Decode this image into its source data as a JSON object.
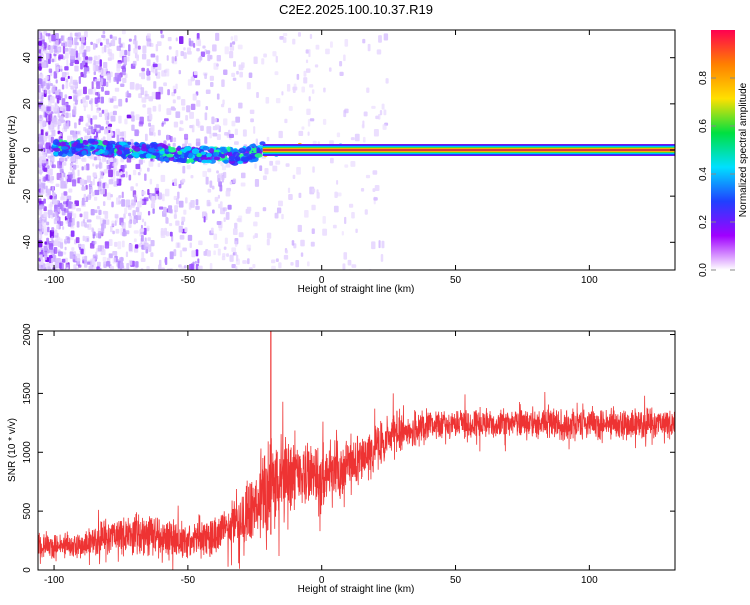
{
  "title": "C2E2.2025.100.10.37.R19",
  "colors": {
    "snr_line": "#ee3333",
    "signal_band": "#d83838",
    "background": "#ffffff",
    "colorbar_stops": [
      "#ffffff",
      "#a000ff",
      "#2040ff",
      "#00e0ff",
      "#00e040",
      "#ffe000",
      "#ff8000",
      "#ff0050"
    ]
  },
  "chart_data": [
    {
      "type": "heatmap",
      "title": "",
      "xlabel": "Height of straight line (km)",
      "ylabel": "Frequency (Hz)",
      "xlim": [
        -106,
        132
      ],
      "ylim": [
        -52,
        52
      ],
      "x_ticks": [
        -100,
        -50,
        0,
        50,
        100
      ],
      "x_tick_labels": [
        "-100",
        "-50",
        "0",
        "50",
        "100"
      ],
      "y_ticks": [
        40,
        20,
        0,
        -20,
        -40
      ],
      "y_tick_labels": [
        "40",
        "20",
        "0",
        "-20",
        "-40"
      ],
      "signal_trace": {
        "x": [
          -100,
          -85,
          -75,
          -65,
          -55,
          -45,
          -38,
          -32,
          -28,
          -25,
          -22,
          0,
          50,
          132
        ],
        "frequency": [
          1,
          1,
          0,
          0,
          -2,
          -2,
          -2,
          -3,
          -2,
          -1,
          0,
          0,
          0,
          0
        ]
      },
      "colorbar": {
        "label": "Normalized spectral amplitude",
        "range": [
          0,
          1
        ],
        "ticks": [
          0.0,
          0.2,
          0.4,
          0.6,
          0.8
        ],
        "tick_labels": [
          "0.0",
          "0.2",
          "0.4",
          "0.6",
          "0.8"
        ]
      }
    },
    {
      "type": "line",
      "title": "",
      "xlabel": "Height of straight line (km)",
      "ylabel": "SNR (10 * v/v)",
      "xlim": [
        -106,
        132
      ],
      "ylim": [
        0,
        2030
      ],
      "x_ticks": [
        -100,
        -50,
        0,
        50,
        100
      ],
      "x_tick_labels": [
        "-100",
        "-50",
        "0",
        "50",
        "100"
      ],
      "y_ticks": [
        0,
        500,
        1000,
        1500,
        2000
      ],
      "y_tick_labels": [
        "0",
        "500",
        "1000",
        "1500",
        "2000"
      ],
      "series": [
        {
          "x": [
            -106,
            -100,
            -90,
            -80,
            -70,
            -60,
            -50,
            -40,
            -30,
            -25,
            -20,
            -18,
            -15,
            -10,
            -5,
            0,
            5,
            10,
            15,
            20,
            25,
            30,
            40,
            50,
            60,
            70,
            80,
            90,
            100,
            110,
            120,
            132
          ],
          "y_mid": [
            200,
            200,
            210,
            280,
            320,
            280,
            250,
            300,
            400,
            550,
            700,
            750,
            750,
            800,
            820,
            800,
            830,
            880,
            950,
            1050,
            1120,
            1180,
            1230,
            1250,
            1250,
            1250,
            1250,
            1240,
            1230,
            1240,
            1240,
            1250
          ],
          "y_spread": [
            120,
            120,
            120,
            180,
            220,
            200,
            180,
            200,
            250,
            350,
            450,
            450,
            420,
            350,
            320,
            300,
            300,
            280,
            280,
            250,
            220,
            200,
            170,
            150,
            150,
            150,
            150,
            150,
            150,
            150,
            150,
            150
          ]
        }
      ],
      "annotations": [
        {
          "x": -19,
          "y": 2030,
          "note": "spike"
        }
      ]
    }
  ]
}
